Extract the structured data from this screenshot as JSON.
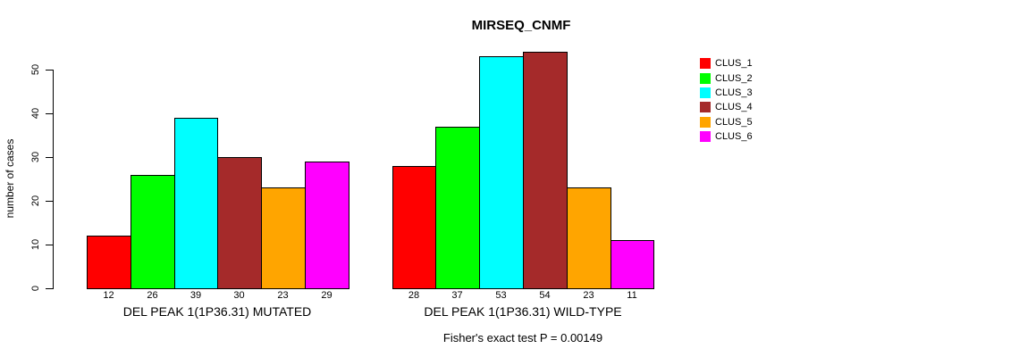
{
  "chart_data": {
    "type": "bar",
    "title": "MIRSEQ_CNMF",
    "ylabel": "number of cases",
    "ylim": [
      0,
      55
    ],
    "yticks": [
      0,
      10,
      20,
      30,
      40,
      50
    ],
    "grid": false,
    "legend_position": "right",
    "categories": [
      "DEL PEAK 1(1P36.31) MUTATED",
      "DEL PEAK 1(1P36.31) WILD-TYPE"
    ],
    "series": [
      {
        "name": "CLUS_1",
        "color": "#FF0000",
        "values": [
          12,
          28
        ]
      },
      {
        "name": "CLUS_2",
        "color": "#00FF00",
        "values": [
          26,
          37
        ]
      },
      {
        "name": "CLUS_3",
        "color": "#00FFFF",
        "values": [
          39,
          53
        ]
      },
      {
        "name": "CLUS_4",
        "color": "#A52A2A",
        "values": [
          30,
          54
        ]
      },
      {
        "name": "CLUS_5",
        "color": "#FFA500",
        "values": [
          23,
          23
        ]
      },
      {
        "name": "CLUS_6",
        "color": "#FF00FF",
        "values": [
          29,
          11
        ]
      }
    ],
    "bar_value_labels": [
      [
        12,
        26,
        39,
        30,
        23,
        29
      ],
      [
        28,
        37,
        53,
        54,
        23,
        11
      ]
    ],
    "annotation": "Fisher's exact test P = 0.00149"
  }
}
